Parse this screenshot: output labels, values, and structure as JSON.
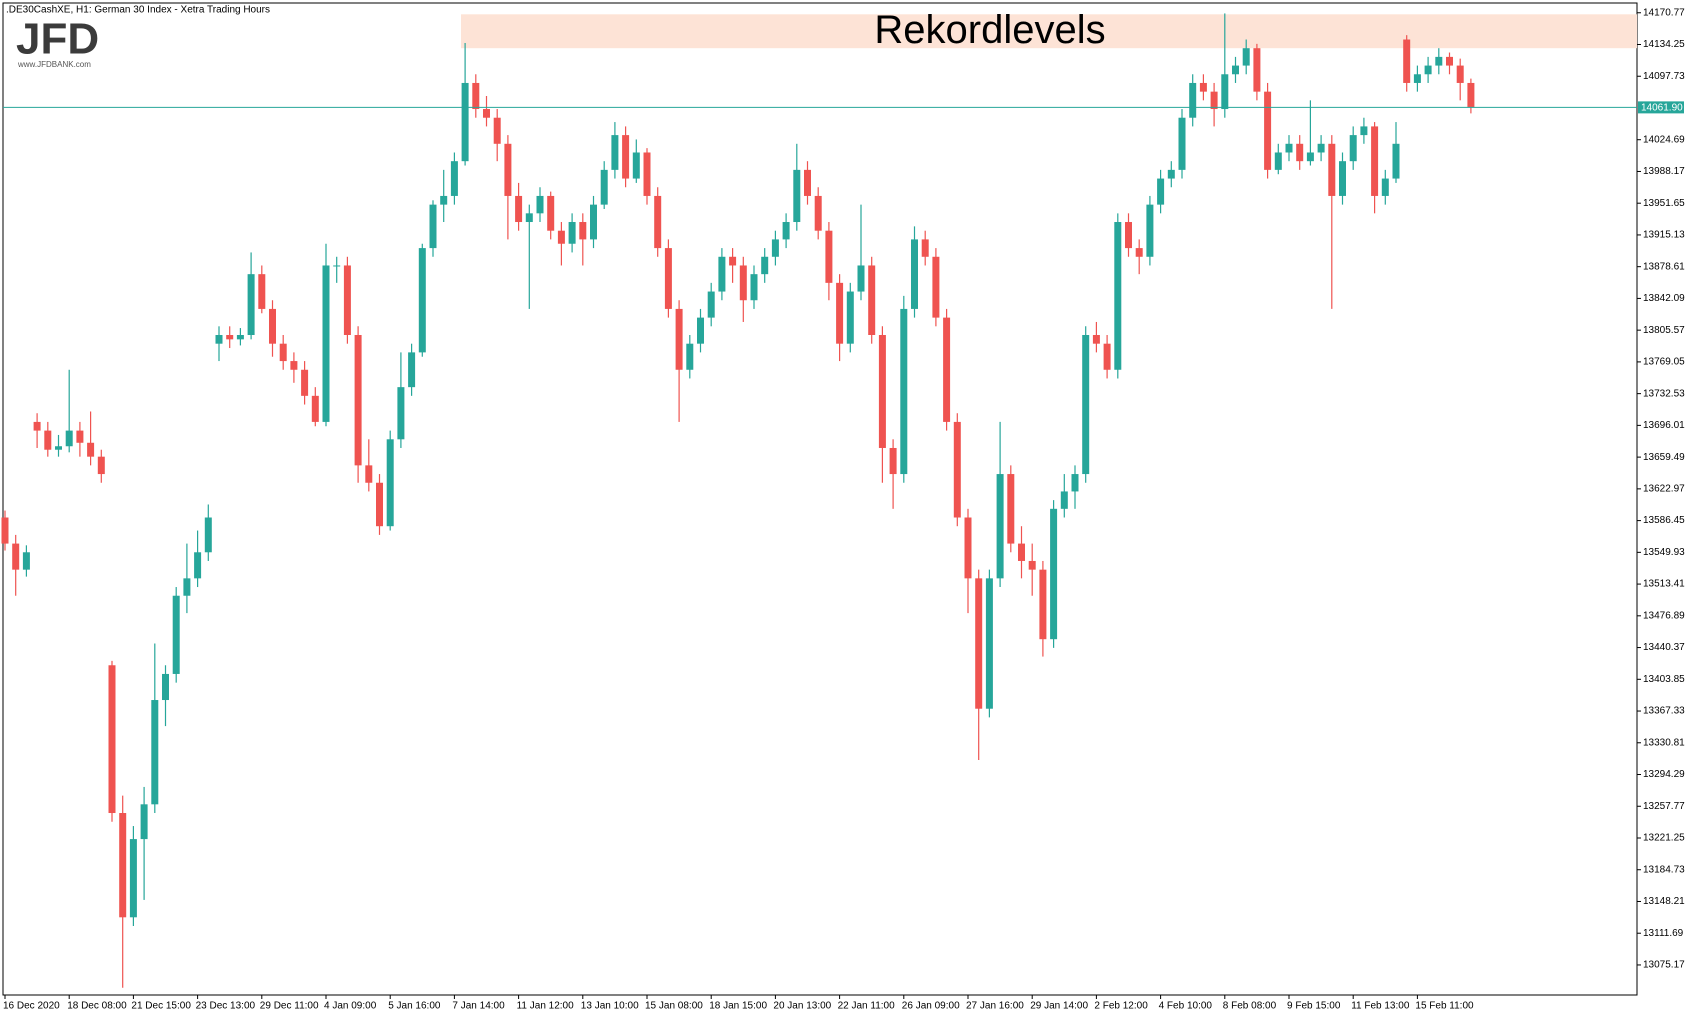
{
  "header": {
    "text": ".DE30CashXE, H1:  German 30 Index  - Xetra Trading Hours"
  },
  "logo": {
    "text": "JFD",
    "url": "www.JFDBANK.com"
  },
  "chart_data": {
    "type": "candlestick",
    "up_color": "#26a69a",
    "down_color": "#ef5350",
    "grid": false,
    "ylim": [
      13040.6,
      14182
    ],
    "yticks": [
      14170.77,
      14134.25,
      14097.73,
      14024.69,
      13988.17,
      13951.65,
      13915.13,
      13878.61,
      13842.09,
      13805.57,
      13769.05,
      13732.53,
      13696.01,
      13659.49,
      13622.97,
      13586.45,
      13549.93,
      13513.41,
      13476.89,
      13440.37,
      13403.85,
      13367.33,
      13330.81,
      13294.29,
      13257.77,
      13221.25,
      13184.73,
      13148.21,
      13111.69,
      13075.17
    ],
    "current_price": {
      "value": 14061.9,
      "label": "14061.90",
      "color": "#26a69a"
    },
    "zone": {
      "text": "Rekordlevels",
      "from": 14130,
      "to": 14169,
      "color": "#fde3d6"
    },
    "categories": [
      "16 Dec 2020",
      null,
      null,
      null,
      null,
      null,
      "18 Dec 08:00",
      null,
      null,
      null,
      null,
      null,
      "21 Dec 15:00",
      null,
      null,
      null,
      null,
      null,
      "23 Dec 13:00",
      null,
      null,
      null,
      null,
      null,
      "29 Dec 11:00",
      null,
      null,
      null,
      null,
      null,
      "4 Jan 09:00",
      null,
      null,
      null,
      null,
      null,
      "5 Jan 16:00",
      null,
      null,
      null,
      null,
      null,
      "7 Jan 14:00",
      null,
      null,
      null,
      null,
      null,
      "11 Jan 12:00",
      null,
      null,
      null,
      null,
      null,
      "13 Jan 10:00",
      null,
      null,
      null,
      null,
      null,
      "15 Jan 08:00",
      null,
      null,
      null,
      null,
      null,
      "18 Jan 15:00",
      null,
      null,
      null,
      null,
      null,
      "20 Jan 13:00",
      null,
      null,
      null,
      null,
      null,
      "22 Jan 11:00",
      null,
      null,
      null,
      null,
      null,
      "26 Jan 09:00",
      null,
      null,
      null,
      null,
      null,
      "27 Jan 16:00",
      null,
      null,
      null,
      null,
      null,
      "29 Jan 14:00",
      null,
      null,
      null,
      null,
      null,
      "2 Feb 12:00",
      null,
      null,
      null,
      null,
      null,
      "4 Feb 10:00",
      null,
      null,
      null,
      null,
      null,
      "8 Feb 08:00",
      null,
      null,
      null,
      null,
      null,
      "9 Feb 15:00",
      null,
      null,
      null,
      null,
      null,
      "11 Feb 13:00",
      null,
      null,
      null,
      null,
      null,
      "15 Feb 11:00",
      null,
      null,
      null,
      null,
      null
    ],
    "open": [
      13590,
      13560,
      13530,
      13700,
      13690,
      13668,
      13672,
      13690,
      13676,
      13660,
      13420,
      13250,
      13130,
      13220,
      13260,
      13380,
      13410,
      13500,
      13520,
      13550,
      13790,
      13800,
      13795,
      13800,
      13870,
      13830,
      13790,
      13770,
      13760,
      13730,
      13700,
      13880,
      13880,
      13800,
      13650,
      13630,
      13580,
      13680,
      13740,
      13780,
      13900,
      13950,
      13960,
      14000,
      14090,
      14060,
      14050,
      14020,
      13960,
      13930,
      13940,
      13960,
      13920,
      13905,
      13930,
      13910,
      13950,
      13990,
      14030,
      13980,
      14010,
      13960,
      13900,
      13830,
      13760,
      13790,
      13820,
      13850,
      13890,
      13880,
      13840,
      13870,
      13890,
      13910,
      13930,
      13990,
      13960,
      13920,
      13860,
      13790,
      13850,
      13880,
      13800,
      13670,
      13640,
      13830,
      13910,
      13890,
      13820,
      13700,
      13590,
      13520,
      13370,
      13520,
      13640,
      13560,
      13540,
      13530,
      13450,
      13600,
      13620,
      13640,
      13800,
      13790,
      13760,
      13930,
      13900,
      13890,
      13950,
      13980,
      13990,
      14050,
      14090,
      14080,
      14060,
      14100,
      14110,
      14130,
      14080,
      13990,
      14010,
      14020,
      14000,
      14010,
      14020,
      13960,
      14000,
      14030,
      14040,
      13960,
      13980,
      14140,
      14090,
      14100,
      14110,
      14120,
      14110,
      14090
    ],
    "high": [
      13598,
      13570,
      13558,
      13710,
      13700,
      13685,
      13760,
      13700,
      13712,
      13668,
      13425,
      13270,
      13235,
      13280,
      13445,
      13420,
      13510,
      13560,
      13575,
      13605,
      13810,
      13810,
      13808,
      13895,
      13880,
      13840,
      13800,
      13780,
      13770,
      13740,
      13905,
      13890,
      13890,
      13810,
      13680,
      13640,
      13690,
      13780,
      13790,
      13905,
      13955,
      13990,
      14010,
      14136,
      14100,
      14075,
      14060,
      14030,
      13975,
      13950,
      13970,
      13965,
      13930,
      13940,
      13940,
      13960,
      14000,
      14045,
      14040,
      14025,
      14015,
      13970,
      13910,
      13840,
      13800,
      13830,
      13860,
      13900,
      13900,
      13890,
      13880,
      13900,
      13920,
      13940,
      14020,
      14000,
      13970,
      13930,
      13870,
      13860,
      13950,
      13890,
      13810,
      13680,
      13845,
      13925,
      13920,
      13900,
      13830,
      13710,
      13600,
      13530,
      13530,
      13700,
      13650,
      13580,
      13560,
      13540,
      13610,
      13640,
      13650,
      13810,
      13815,
      13800,
      13940,
      13940,
      13910,
      13960,
      13990,
      14000,
      14060,
      14100,
      14100,
      14090,
      14170,
      14120,
      14140,
      14135,
      14090,
      14020,
      14030,
      14030,
      14070,
      14030,
      14030,
      14010,
      14040,
      14050,
      14045,
      13990,
      14045,
      14145,
      14110,
      14120,
      14130,
      14125,
      14118,
      14095
    ],
    "low": [
      13552,
      13500,
      13522,
      13670,
      13660,
      13660,
      13665,
      13660,
      13650,
      13630,
      13240,
      13049,
      13120,
      13150,
      13250,
      13350,
      13400,
      13480,
      13510,
      13540,
      13770,
      13785,
      13788,
      13795,
      13825,
      13775,
      13760,
      13745,
      13720,
      13695,
      13695,
      13860,
      13790,
      13630,
      13620,
      13570,
      13575,
      13670,
      13730,
      13775,
      13890,
      13930,
      13950,
      13995,
      14050,
      14040,
      14000,
      13910,
      13920,
      13830,
      13930,
      13910,
      13880,
      13895,
      13880,
      13900,
      13945,
      13980,
      13970,
      13975,
      13950,
      13890,
      13820,
      13700,
      13750,
      13780,
      13810,
      13840,
      13860,
      13815,
      13830,
      13860,
      13880,
      13900,
      13920,
      13950,
      13910,
      13840,
      13770,
      13780,
      13840,
      13790,
      13630,
      13600,
      13630,
      13820,
      13880,
      13810,
      13690,
      13580,
      13480,
      13311,
      13360,
      13510,
      13550,
      13520,
      13500,
      13430,
      13440,
      13590,
      13600,
      13630,
      13780,
      13750,
      13750,
      13890,
      13870,
      13880,
      13940,
      13970,
      13980,
      14040,
      14070,
      14040,
      14050,
      14090,
      14100,
      14070,
      13980,
      13985,
      14000,
      13990,
      13995,
      14000,
      13830,
      13950,
      13990,
      14020,
      13940,
      13950,
      13975,
      14080,
      14080,
      14090,
      14100,
      14100,
      14070,
      14055
    ],
    "close": [
      13560,
      13530,
      13550,
      13690,
      13668,
      13672,
      13690,
      13676,
      13660,
      13640,
      13250,
      13130,
      13220,
      13260,
      13380,
      13410,
      13500,
      13520,
      13550,
      13590,
      13800,
      13795,
      13800,
      13870,
      13830,
      13790,
      13770,
      13760,
      13730,
      13700,
      13880,
      13880,
      13800,
      13650,
      13630,
      13580,
      13680,
      13740,
      13780,
      13900,
      13950,
      13960,
      14000,
      14090,
      14060,
      14050,
      14020,
      13960,
      13930,
      13940,
      13960,
      13920,
      13905,
      13930,
      13910,
      13950,
      13990,
      14030,
      13980,
      14010,
      13960,
      13900,
      13830,
      13760,
      13790,
      13820,
      13850,
      13890,
      13880,
      13840,
      13870,
      13890,
      13910,
      13930,
      13990,
      13960,
      13920,
      13860,
      13790,
      13850,
      13880,
      13800,
      13670,
      13640,
      13830,
      13910,
      13890,
      13820,
      13700,
      13590,
      13520,
      13370,
      13520,
      13640,
      13560,
      13540,
      13530,
      13450,
      13600,
      13620,
      13640,
      13800,
      13790,
      13760,
      13930,
      13900,
      13890,
      13950,
      13980,
      13990,
      14050,
      14090,
      14080,
      14060,
      14100,
      14110,
      14130,
      14080,
      13990,
      14010,
      14020,
      14000,
      14010,
      14020,
      13960,
      14000,
      14030,
      14040,
      13960,
      13980,
      14020,
      14090,
      14100,
      14110,
      14120,
      14110,
      14090,
      14061.9
    ]
  }
}
